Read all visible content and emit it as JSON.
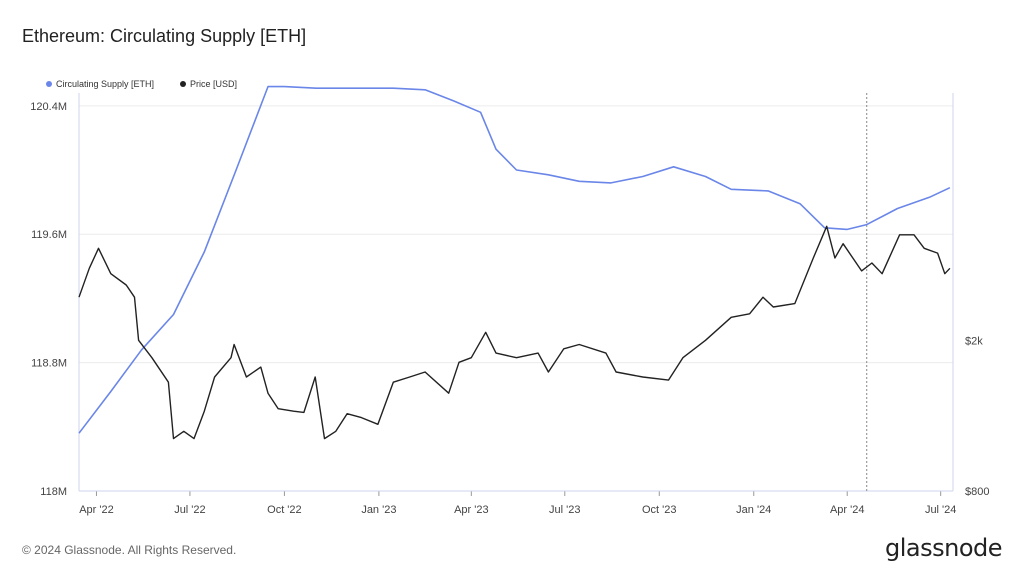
{
  "title": "Ethereum: Circulating Supply [ETH]",
  "footer": "© 2024 Glassnode. All Rights Reserved.",
  "logo": "glassnode",
  "chart_data": {
    "type": "line",
    "title": "Ethereum: Circulating Supply [ETH]",
    "legend_position": "top-left",
    "grid": true,
    "x_ticks": [
      "Apr '22",
      "Jul '22",
      "Oct '22",
      "Jan '23",
      "Apr '23",
      "Jul '23",
      "Oct '23",
      "Jan '24",
      "Apr '24",
      "Jul '24"
    ],
    "y_left": {
      "ticks": [
        "118M",
        "118.8M",
        "119.6M",
        "120.4M"
      ],
      "range": [
        118000000,
        120480000
      ],
      "unit": "ETH"
    },
    "y_right": {
      "ticks": [
        "$800",
        "$2k"
      ],
      "scale": "log",
      "range": [
        800,
        9000
      ],
      "unit": "USD"
    },
    "series": [
      {
        "name": "Circulating Supply [ETH]",
        "color": "#6a86e8",
        "axis": "left",
        "points": [
          [
            "2022-03-15",
            118360000
          ],
          [
            "2022-04-15",
            118620000
          ],
          [
            "2022-05-15",
            118880000
          ],
          [
            "2022-06-15",
            119100000
          ],
          [
            "2022-07-15",
            119490000
          ],
          [
            "2022-08-15",
            120000000
          ],
          [
            "2022-09-15",
            120520000
          ],
          [
            "2022-10-01",
            120520000
          ],
          [
            "2022-11-01",
            120510000
          ],
          [
            "2022-12-15",
            120510000
          ],
          [
            "2023-01-15",
            120510000
          ],
          [
            "2023-02-15",
            120500000
          ],
          [
            "2023-03-15",
            120430000
          ],
          [
            "2023-04-10",
            120360000
          ],
          [
            "2023-04-25",
            120130000
          ],
          [
            "2023-05-15",
            120000000
          ],
          [
            "2023-06-15",
            119970000
          ],
          [
            "2023-07-15",
            119930000
          ],
          [
            "2023-08-15",
            119920000
          ],
          [
            "2023-09-15",
            119960000
          ],
          [
            "2023-10-15",
            120020000
          ],
          [
            "2023-11-15",
            119960000
          ],
          [
            "2023-12-10",
            119880000
          ],
          [
            "2024-01-15",
            119870000
          ],
          [
            "2024-02-15",
            119790000
          ],
          [
            "2024-03-10",
            119640000
          ],
          [
            "2024-04-01",
            119630000
          ],
          [
            "2024-04-20",
            119660000
          ],
          [
            "2024-05-20",
            119760000
          ],
          [
            "2024-06-20",
            119830000
          ],
          [
            "2024-07-10",
            119890000
          ]
        ]
      },
      {
        "name": "Price [USD]",
        "color": "#222222",
        "axis": "right",
        "points": [
          [
            "2022-03-15",
            2600
          ],
          [
            "2022-03-25",
            3100
          ],
          [
            "2022-04-03",
            3500
          ],
          [
            "2022-04-15",
            3000
          ],
          [
            "2022-04-30",
            2800
          ],
          [
            "2022-05-08",
            2600
          ],
          [
            "2022-05-12",
            2000
          ],
          [
            "2022-05-25",
            1800
          ],
          [
            "2022-06-10",
            1550
          ],
          [
            "2022-06-15",
            1100
          ],
          [
            "2022-06-25",
            1150
          ],
          [
            "2022-07-05",
            1100
          ],
          [
            "2022-07-15",
            1300
          ],
          [
            "2022-07-25",
            1600
          ],
          [
            "2022-08-10",
            1800
          ],
          [
            "2022-08-13",
            1950
          ],
          [
            "2022-08-25",
            1600
          ],
          [
            "2022-09-08",
            1700
          ],
          [
            "2022-09-15",
            1450
          ],
          [
            "2022-09-25",
            1320
          ],
          [
            "2022-10-10",
            1300
          ],
          [
            "2022-10-20",
            1290
          ],
          [
            "2022-10-31",
            1600
          ],
          [
            "2022-11-09",
            1100
          ],
          [
            "2022-11-20",
            1150
          ],
          [
            "2022-12-01",
            1280
          ],
          [
            "2022-12-15",
            1250
          ],
          [
            "2022-12-31",
            1200
          ],
          [
            "2023-01-15",
            1550
          ],
          [
            "2023-01-31",
            1600
          ],
          [
            "2023-02-15",
            1650
          ],
          [
            "2023-03-10",
            1450
          ],
          [
            "2023-03-20",
            1750
          ],
          [
            "2023-04-01",
            1800
          ],
          [
            "2023-04-15",
            2100
          ],
          [
            "2023-04-25",
            1850
          ],
          [
            "2023-05-15",
            1800
          ],
          [
            "2023-06-05",
            1850
          ],
          [
            "2023-06-15",
            1650
          ],
          [
            "2023-06-30",
            1900
          ],
          [
            "2023-07-15",
            1950
          ],
          [
            "2023-08-10",
            1850
          ],
          [
            "2023-08-20",
            1650
          ],
          [
            "2023-09-15",
            1600
          ],
          [
            "2023-10-10",
            1570
          ],
          [
            "2023-10-24",
            1800
          ],
          [
            "2023-11-15",
            2000
          ],
          [
            "2023-12-10",
            2300
          ],
          [
            "2023-12-28",
            2350
          ],
          [
            "2024-01-10",
            2600
          ],
          [
            "2024-01-20",
            2450
          ],
          [
            "2024-02-10",
            2500
          ],
          [
            "2024-02-28",
            3300
          ],
          [
            "2024-03-12",
            4000
          ],
          [
            "2024-03-20",
            3300
          ],
          [
            "2024-03-28",
            3600
          ],
          [
            "2024-04-15",
            3050
          ],
          [
            "2024-04-25",
            3200
          ],
          [
            "2024-05-05",
            3000
          ],
          [
            "2024-05-22",
            3800
          ],
          [
            "2024-06-05",
            3800
          ],
          [
            "2024-06-15",
            3500
          ],
          [
            "2024-06-28",
            3400
          ],
          [
            "2024-07-05",
            3000
          ],
          [
            "2024-07-10",
            3100
          ]
        ]
      }
    ],
    "marker_date": "2024-04-20"
  }
}
